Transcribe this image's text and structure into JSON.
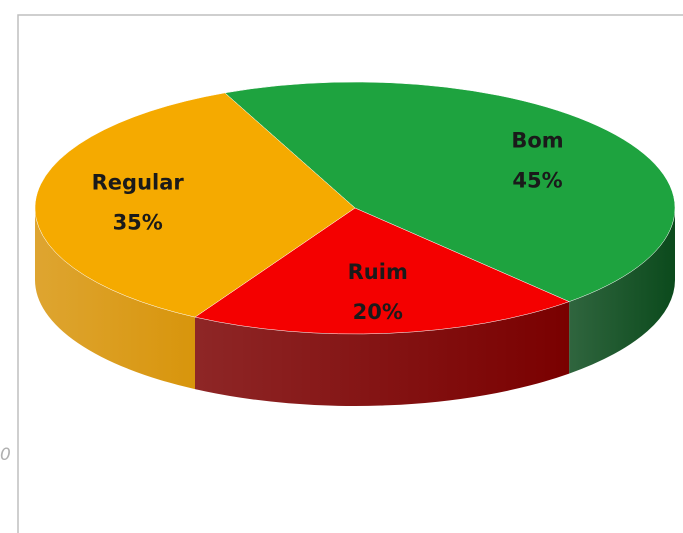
{
  "chart_data": {
    "type": "pie3d",
    "categories": [
      "Bom",
      "Ruim",
      "Regular"
    ],
    "values": [
      45,
      20,
      35
    ],
    "value_labels": [
      "45%",
      "20%",
      "35%"
    ],
    "colors": [
      "#1ea33f",
      "#f40000",
      "#f5aa00"
    ],
    "side_colors": [
      "#0b4a1c",
      "#7a0000",
      "#d8950c"
    ],
    "annotations": [
      "0"
    ]
  }
}
